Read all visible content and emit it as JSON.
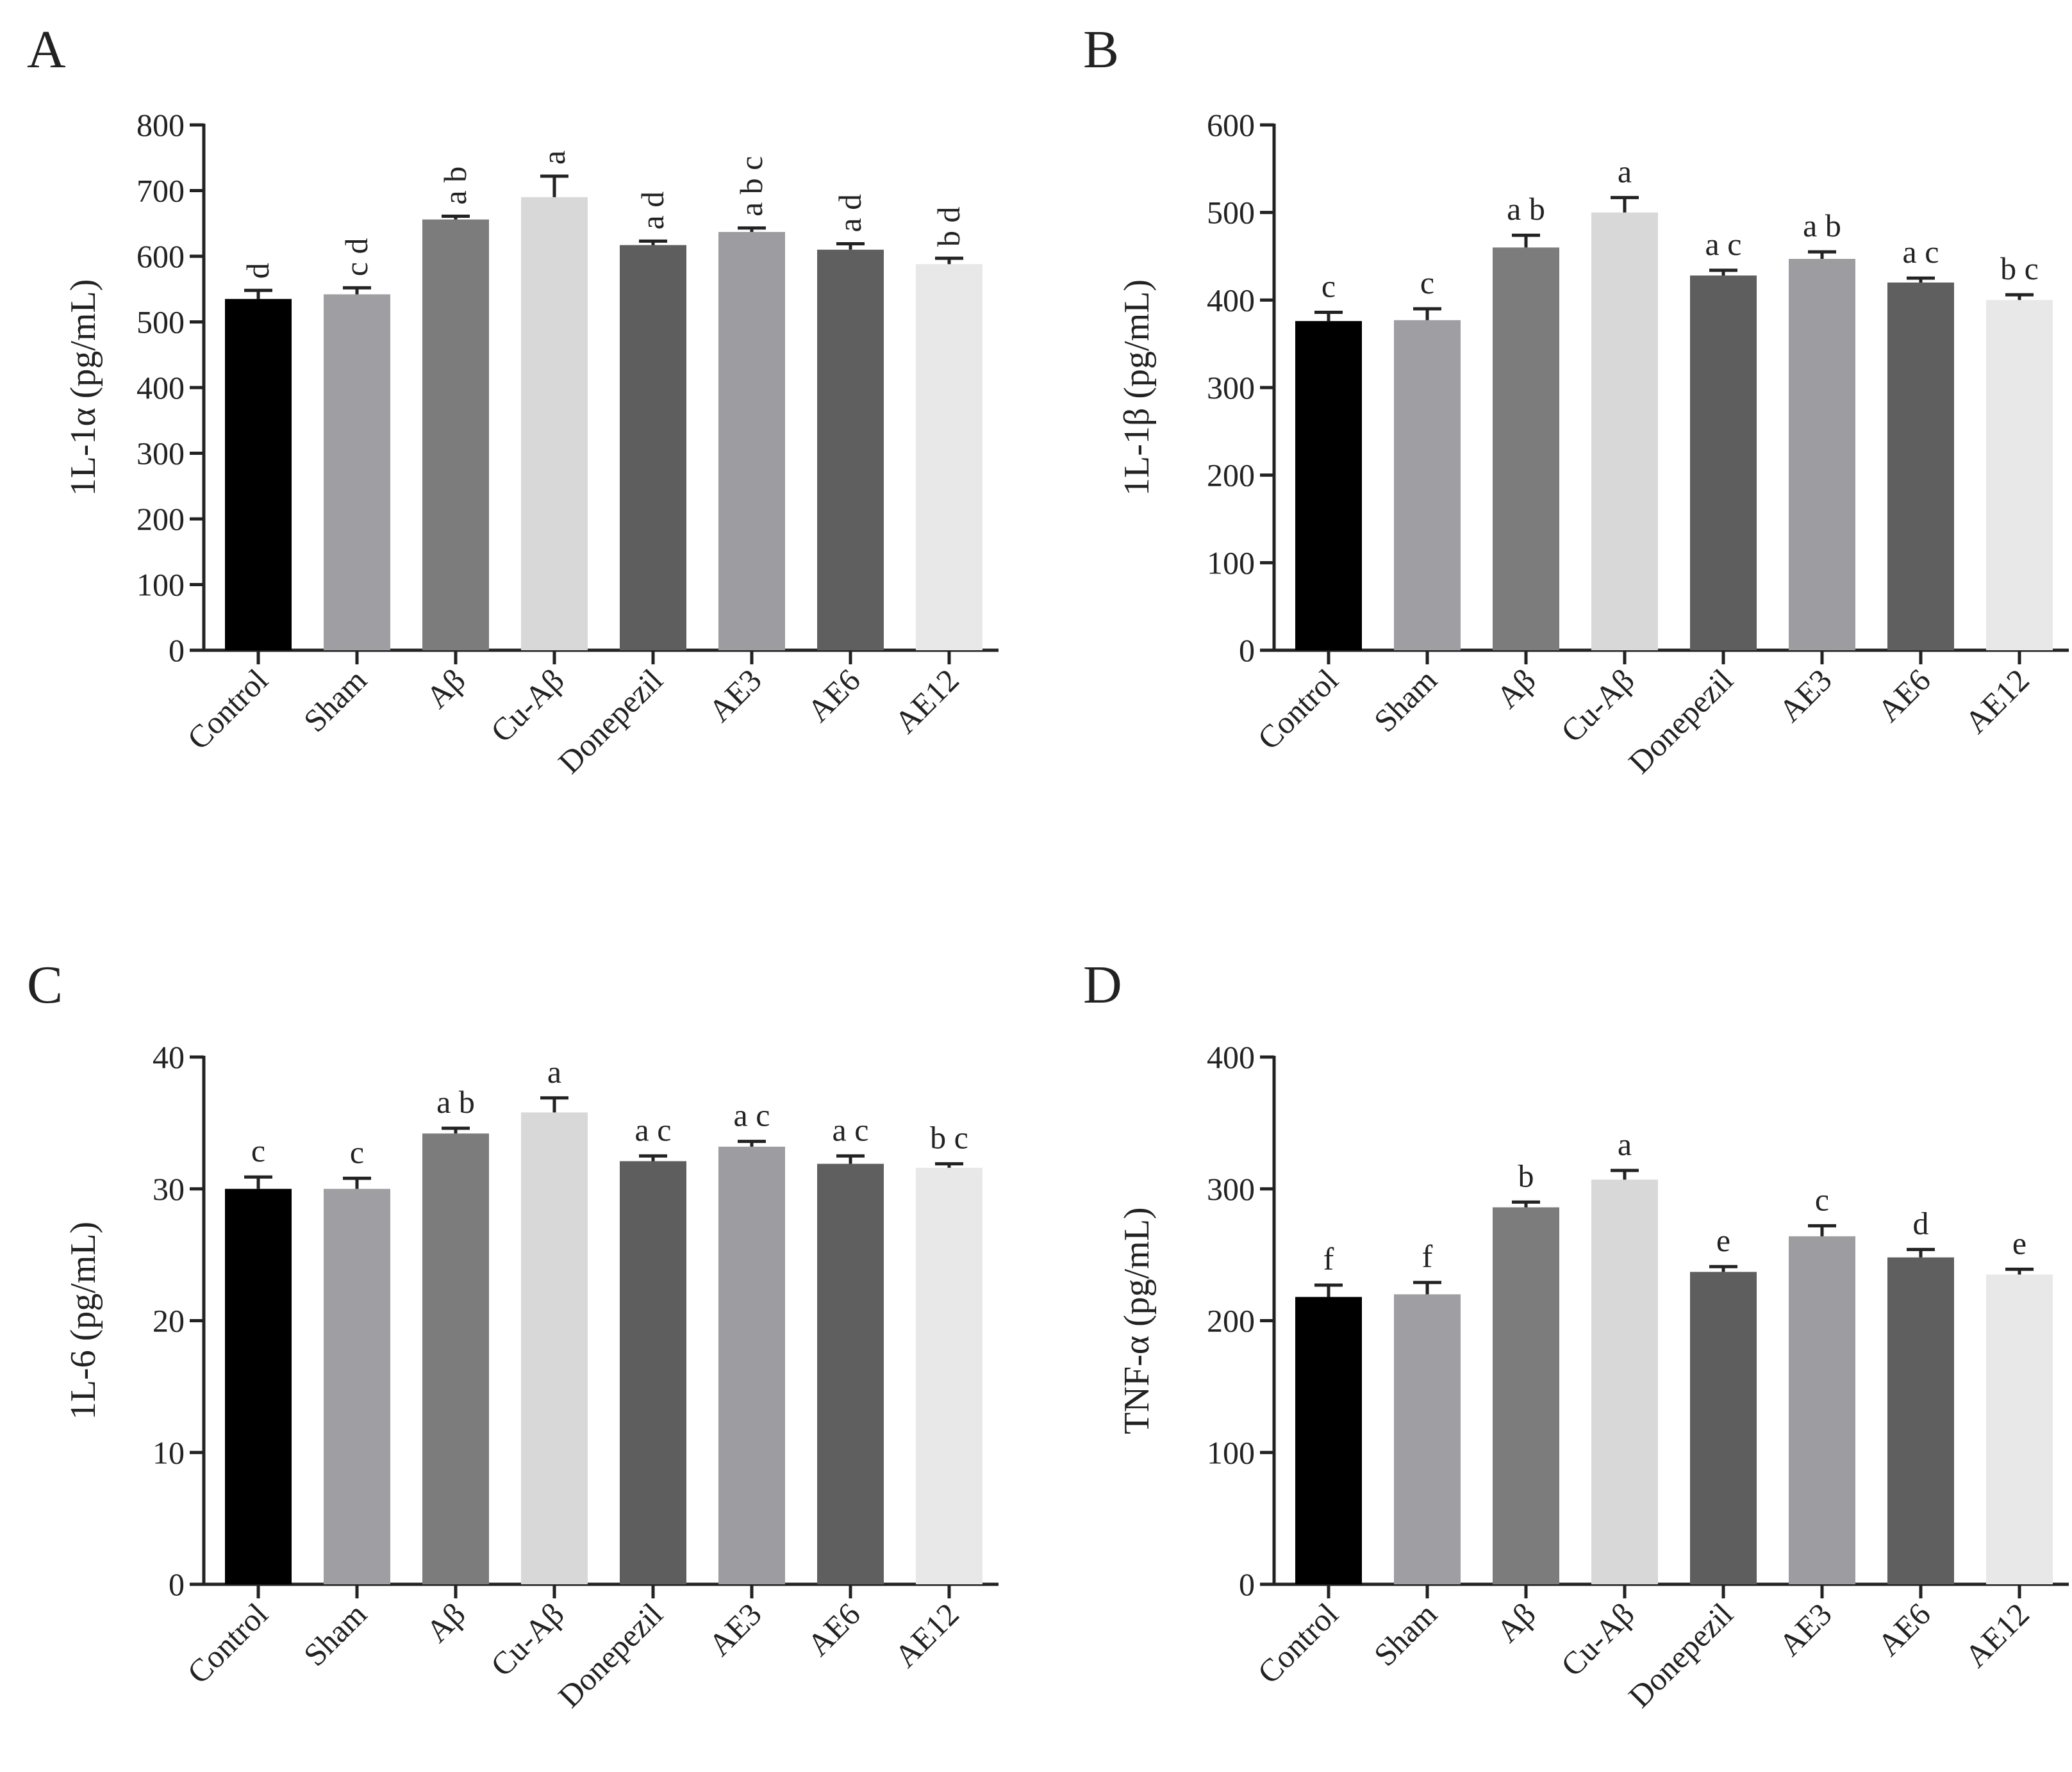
{
  "palette": [
    "#000000",
    "#9e9ea3",
    "#7c7c7c",
    "#d8d8d8",
    "#5e5e5e",
    "#9c9ca1",
    "#5f5f5f",
    "#e8e8e8"
  ],
  "chart_data": [
    {
      "panel": "A",
      "type": "bar",
      "categories": [
        "Control",
        "Sham",
        "Aβ",
        "Cu-Aβ",
        "Donepezil",
        "AE3",
        "AE6",
        "AE12"
      ],
      "values": [
        535,
        542,
        656,
        690,
        617,
        637,
        610,
        588
      ],
      "errors": [
        13,
        10,
        5,
        32,
        6,
        6,
        9,
        9
      ],
      "significance": [
        "d",
        "c d",
        "a b",
        "a",
        "a d",
        "a b c",
        "a d",
        "b d"
      ],
      "sig_rotated": true,
      "ylabel": "1L-1α (pg/mL)",
      "ylim": [
        0,
        800
      ],
      "yticks": [
        "0",
        "100",
        "200",
        "300",
        "400",
        "500",
        "600",
        "700",
        "800"
      ]
    },
    {
      "panel": "B",
      "type": "bar",
      "categories": [
        "Control",
        "Sham",
        "Aβ",
        "Cu-Aβ",
        "Donepezil",
        "AE3",
        "AE6",
        "AE12"
      ],
      "values": [
        376,
        377,
        460,
        500,
        428,
        447,
        420,
        400
      ],
      "errors": [
        10,
        13,
        14,
        17,
        6,
        8,
        5,
        6
      ],
      "significance": [
        "c",
        "c",
        "a b",
        "a",
        "a c",
        "a b",
        "a c",
        "b c"
      ],
      "sig_rotated": false,
      "ylabel": "1L-1β (pg/mL)",
      "ylim": [
        0,
        600
      ],
      "yticks": [
        "0",
        "100",
        "200",
        "300",
        "400",
        "500",
        "600"
      ]
    },
    {
      "panel": "C",
      "type": "bar",
      "categories": [
        "Control",
        "Sham",
        "Aβ",
        "Cu-Aβ",
        "Donepezil",
        "AE3",
        "AE6",
        "AE12"
      ],
      "values": [
        30,
        30,
        34.2,
        35.8,
        32.1,
        33.2,
        31.9,
        31.6
      ],
      "errors": [
        0.9,
        0.8,
        0.4,
        1.1,
        0.4,
        0.4,
        0.6,
        0.3
      ],
      "significance": [
        "c",
        "c",
        "a b",
        "a",
        "a c",
        "a c",
        "a c",
        "b c"
      ],
      "sig_rotated": false,
      "ylabel": "1L-6 (pg/mL)",
      "ylim": [
        0,
        40
      ],
      "yticks": [
        "0",
        "10",
        "20",
        "30",
        "40"
      ]
    },
    {
      "panel": "D",
      "type": "bar",
      "categories": [
        "Control",
        "Sham",
        "Aβ",
        "Cu-Aβ",
        "Donepezil",
        "AE3",
        "AE6",
        "AE12"
      ],
      "values": [
        218,
        220,
        286,
        307,
        237,
        264,
        248,
        235
      ],
      "errors": [
        9,
        9,
        4,
        7,
        4,
        8,
        6,
        4
      ],
      "significance": [
        "f",
        "f",
        "b",
        "a",
        "e",
        "c",
        "d",
        "e"
      ],
      "sig_rotated": false,
      "ylabel": "TNF-α (pg/mL)",
      "ylim": [
        0,
        400
      ],
      "yticks": [
        "0",
        "100",
        "200",
        "300",
        "400"
      ]
    }
  ]
}
